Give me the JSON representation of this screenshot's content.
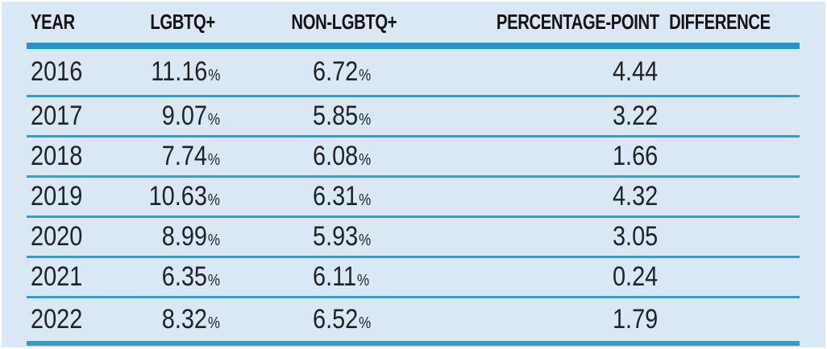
{
  "colors": {
    "panel_bg": "#dae7f4",
    "header_bar": "#2196d0",
    "row_line": "#2ba0d4",
    "bottom_bar": "#2f9fc6",
    "header_text": "#141414",
    "value_text": "#222326"
  },
  "table": {
    "headers": [
      "YEAR",
      "LGBTQ+",
      "NON-LGBTQ+",
      "PERCENTAGE-POINT DIFFERENCE"
    ],
    "units": {
      "percent": "%"
    },
    "rows": [
      {
        "year": "2016",
        "lgbtq": "11.16",
        "non_lgbtq": "6.72",
        "difference": "4.44"
      },
      {
        "year": "2017",
        "lgbtq": "9.07",
        "non_lgbtq": "5.85",
        "difference": "3.22"
      },
      {
        "year": "2018",
        "lgbtq": "7.74",
        "non_lgbtq": "6.08",
        "difference": "1.66"
      },
      {
        "year": "2019",
        "lgbtq": "10.63",
        "non_lgbtq": "6.31",
        "difference": "4.32"
      },
      {
        "year": "2020",
        "lgbtq": "8.99",
        "non_lgbtq": "5.93",
        "difference": "3.05"
      },
      {
        "year": "2021",
        "lgbtq": "6.35",
        "non_lgbtq": "6.11",
        "difference": "0.24"
      },
      {
        "year": "2022",
        "lgbtq": "8.32",
        "non_lgbtq": "6.52",
        "difference": "1.79"
      }
    ]
  },
  "chart_data": {
    "type": "table",
    "title": "",
    "columns": [
      "YEAR",
      "LGBTQ+",
      "NON-LGBTQ+",
      "PERCENTAGE-POINT DIFFERENCE"
    ],
    "categories": [
      2016,
      2017,
      2018,
      2019,
      2020,
      2021,
      2022
    ],
    "series": [
      {
        "name": "LGBTQ+ (%)",
        "values": [
          11.16,
          9.07,
          7.74,
          10.63,
          8.99,
          6.35,
          8.32
        ]
      },
      {
        "name": "NON-LGBTQ+ (%)",
        "values": [
          6.72,
          5.85,
          6.08,
          6.31,
          5.93,
          6.11,
          6.52
        ]
      },
      {
        "name": "PERCENTAGE-POINT DIFFERENCE",
        "values": [
          4.44,
          3.22,
          1.66,
          4.32,
          3.05,
          0.24,
          1.79
        ]
      }
    ]
  }
}
